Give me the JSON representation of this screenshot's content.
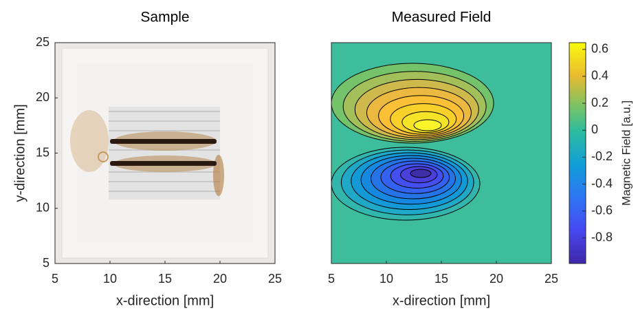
{
  "chart_data": [
    {
      "type": "image",
      "title": "Sample",
      "xlabel": "x-direction [mm]",
      "ylabel": "y-direction [mm]",
      "xlim": [
        5,
        25
      ],
      "ylim": [
        5,
        25
      ],
      "xticks": [
        5,
        10,
        15,
        20,
        25
      ],
      "yticks": [
        5,
        10,
        15,
        20,
        25
      ]
    },
    {
      "type": "contour",
      "title": "Measured Field",
      "xlabel": "x-direction [mm]",
      "xlim": [
        5,
        25
      ],
      "ylim": [
        5,
        25
      ],
      "xticks": [
        5,
        10,
        15,
        20,
        25
      ],
      "colorbar": {
        "label": "Magnetic Field [a.u.]",
        "lim": [
          -0.99,
          0.65
        ],
        "ticks": [
          -0.8,
          -0.6,
          -0.4,
          -0.2,
          0,
          0.2,
          0.4,
          0.6
        ]
      }
    }
  ]
}
